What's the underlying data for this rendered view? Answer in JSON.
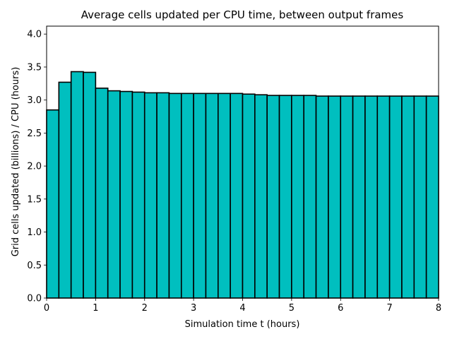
{
  "chart_data": {
    "type": "bar",
    "title": "Average cells updated per CPU time, between output frames",
    "xlabel": "Simulation time t (hours)",
    "ylabel": "Grid cells updated (billions) / CPU (hours)",
    "xlim": [
      0,
      8
    ],
    "ylim": [
      0,
      4.12
    ],
    "xticks": [
      0,
      1,
      2,
      3,
      4,
      5,
      6,
      7,
      8
    ],
    "yticks": [
      0.0,
      0.5,
      1.0,
      1.5,
      2.0,
      2.5,
      3.0,
      3.5,
      4.0
    ],
    "bin_width": 0.25,
    "bar_color": "#00bfbf",
    "edge_color": "#000000",
    "grid": false,
    "series": [
      {
        "x_start": [
          0,
          0.25,
          0.5,
          0.75,
          1.0,
          1.25,
          1.5,
          1.75,
          2.0,
          2.25,
          2.5,
          2.75,
          3.0,
          3.25,
          3.5,
          3.75,
          4.0,
          4.25,
          4.5,
          4.75,
          5.0,
          5.25,
          5.5,
          5.75,
          6.0,
          6.25,
          6.5,
          6.75,
          7.0,
          7.25,
          7.5,
          7.75
        ],
        "values": [
          2.85,
          3.27,
          3.43,
          3.42,
          3.18,
          3.14,
          3.13,
          3.12,
          3.11,
          3.11,
          3.1,
          3.1,
          3.1,
          3.1,
          3.1,
          3.1,
          3.09,
          3.08,
          3.07,
          3.07,
          3.07,
          3.07,
          3.06,
          3.06,
          3.06,
          3.06,
          3.06,
          3.06,
          3.06,
          3.06,
          3.06,
          3.06
        ]
      }
    ]
  }
}
